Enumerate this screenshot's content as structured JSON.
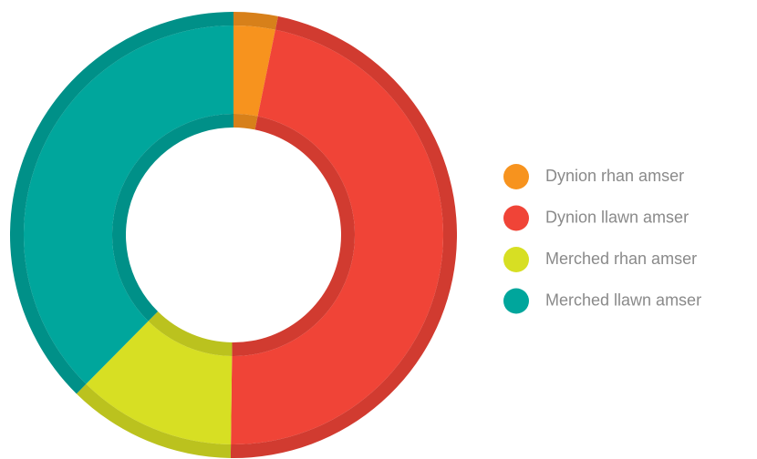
{
  "chart_data": {
    "type": "donut",
    "categories": [
      "Dynion rhan amser",
      "Dynion llawn amser",
      "Merched rhan amser",
      "Merched llawn amser"
    ],
    "values": [
      3.2,
      47,
      12.2,
      37.6
    ],
    "colors": [
      "#f7931e",
      "#f04437",
      "#d7df23",
      "#00a69c"
    ],
    "legend": "right"
  }
}
